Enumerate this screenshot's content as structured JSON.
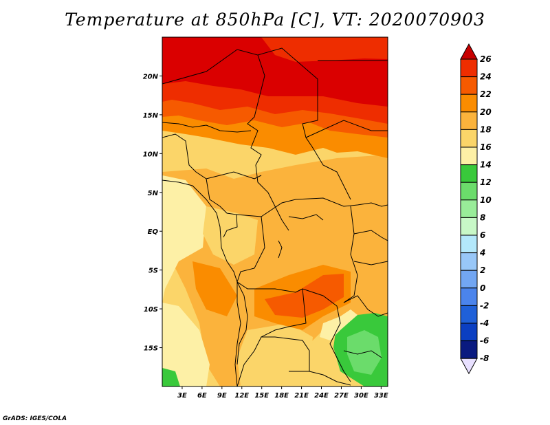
{
  "title": "Temperature at 850hPa [C], VT: 2020070903",
  "footer": "GrADS: IGES/COLA",
  "map": {
    "lat_labels": [
      "20N",
      "15N",
      "10N",
      "5N",
      "EQ",
      "5S",
      "10S",
      "15S"
    ],
    "lon_labels": [
      "3E",
      "6E",
      "9E",
      "12E",
      "15E",
      "18E",
      "21E",
      "24E",
      "27E",
      "30E",
      "33E"
    ],
    "lat_range": [
      -20,
      25
    ],
    "lon_range": [
      0,
      34
    ]
  },
  "colorbar": {
    "labels": [
      "26",
      "24",
      "22",
      "20",
      "18",
      "16",
      "14",
      "12",
      "10",
      "8",
      "6",
      "4",
      "2",
      "0",
      "-2",
      "-4",
      "-6",
      "-8"
    ],
    "colors": [
      "#da0000",
      "#ee2d00",
      "#f65a00",
      "#fa8c00",
      "#fbb33c",
      "#fbd569",
      "#fdf0a6",
      "#39c93b",
      "#6bdc6b",
      "#99ec99",
      "#c8f8c7",
      "#b3e8fb",
      "#98c7f8",
      "#72a6f3",
      "#4b84ec",
      "#1f60d8",
      "#0b3fc2",
      "#0a1a80",
      "#e8e0ff"
    ],
    "top_arrow_color": "#c80000",
    "bottom_arrow_color": "#e8e0ff"
  },
  "field_colors": {
    "hot": "#da0000",
    "t24": "#ee2d00",
    "t22": "#f65a00",
    "t20": "#fa8c00",
    "t18": "#fbb33c",
    "t16": "#fbd569",
    "t14": "#fdf0a6",
    "g12": "#39c93b",
    "g10": "#6bdc6b",
    "g8": "#99ec99"
  }
}
